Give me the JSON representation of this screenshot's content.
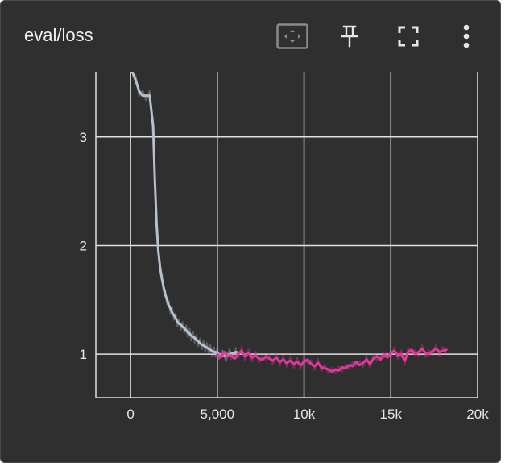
{
  "card": {
    "title": "eval/loss"
  },
  "toolbar": {
    "icons": [
      "fit-domain-icon",
      "pin-icon",
      "fullscreen-icon",
      "more-vert-icon"
    ]
  },
  "colors": {
    "background": "#2f2f2f",
    "grid": "#e0e0e0",
    "run_1": "#b7c0cd",
    "run_2": "#e2389a"
  },
  "chart_data": {
    "type": "line",
    "title": "eval/loss",
    "xlabel": "",
    "ylabel": "",
    "xlim": [
      -2000,
      20000
    ],
    "ylim": [
      0.6,
      3.6
    ],
    "x_ticks": [
      0,
      5000,
      10000,
      15000,
      20000
    ],
    "x_tick_labels": [
      "0",
      "5,000",
      "10k",
      "15k",
      "20k"
    ],
    "y_ticks": [
      1,
      2,
      3
    ],
    "y_tick_labels": [
      "1",
      "2",
      "3"
    ],
    "grid": true,
    "series": [
      {
        "color": "#b7c0cd",
        "x": [
          100,
          300,
          500,
          700,
          900,
          1100,
          1300,
          1400,
          1500,
          1600,
          1700,
          1800,
          1900,
          2000,
          2100,
          2200,
          2300,
          2400,
          2500,
          2600,
          2700,
          2800,
          2900,
          3000,
          3100,
          3200,
          3300,
          3400,
          3500,
          3600,
          3700,
          3800,
          3900,
          4000,
          4100,
          4200,
          4300,
          4400,
          4500,
          4600,
          4700,
          4800,
          4900,
          5000,
          5100,
          5300,
          5500,
          5700,
          5900,
          6100
        ],
        "values": [
          3.6,
          3.52,
          3.42,
          3.38,
          3.38,
          3.38,
          3.1,
          2.6,
          2.2,
          1.95,
          1.8,
          1.7,
          1.62,
          1.55,
          1.5,
          1.45,
          1.42,
          1.38,
          1.36,
          1.33,
          1.3,
          1.28,
          1.27,
          1.25,
          1.24,
          1.22,
          1.2,
          1.19,
          1.17,
          1.16,
          1.15,
          1.13,
          1.12,
          1.1,
          1.09,
          1.08,
          1.07,
          1.06,
          1.05,
          1.04,
          1.03,
          1.02,
          1.02,
          1.01,
          1.0,
          0.99,
          0.98,
          1.0,
          1.01,
          1.02
        ]
      },
      {
        "color": "#e2389a",
        "x": [
          5000,
          5200,
          5400,
          5600,
          5800,
          6000,
          6200,
          6400,
          6600,
          6800,
          7000,
          7200,
          7400,
          7600,
          7800,
          8000,
          8200,
          8400,
          8600,
          8800,
          9000,
          9200,
          9400,
          9600,
          9800,
          10000,
          10200,
          10400,
          10600,
          10800,
          11000,
          11200,
          11400,
          11600,
          11800,
          12000,
          12200,
          12400,
          12600,
          12800,
          13000,
          13200,
          13400,
          13600,
          13800,
          14000,
          14200,
          14400,
          14600,
          14800,
          15000,
          15200,
          15400,
          15600,
          15800,
          16000,
          16200,
          16400,
          16600,
          16800,
          17000,
          17200,
          17400,
          17600,
          17800,
          18000,
          18200
        ],
        "values": [
          1.0,
          0.97,
          1.02,
          0.98,
          0.99,
          0.96,
          1.0,
          1.03,
          0.98,
          1.01,
          0.97,
          0.99,
          0.96,
          0.95,
          0.98,
          0.96,
          0.94,
          0.97,
          0.93,
          0.95,
          0.92,
          0.94,
          0.91,
          0.93,
          0.9,
          0.93,
          0.95,
          0.91,
          0.89,
          0.92,
          0.88,
          0.87,
          0.86,
          0.84,
          0.86,
          0.85,
          0.88,
          0.87,
          0.9,
          0.89,
          0.93,
          0.9,
          0.92,
          0.95,
          0.91,
          0.96,
          0.98,
          0.95,
          1.0,
          0.97,
          1.01,
          1.03,
          0.99,
          1.0,
          0.94,
          1.02,
          1.04,
          1.0,
          1.02,
          1.05,
          1.01,
          1.0,
          1.03,
          1.05,
          1.02,
          1.03,
          1.04
        ]
      }
    ]
  }
}
